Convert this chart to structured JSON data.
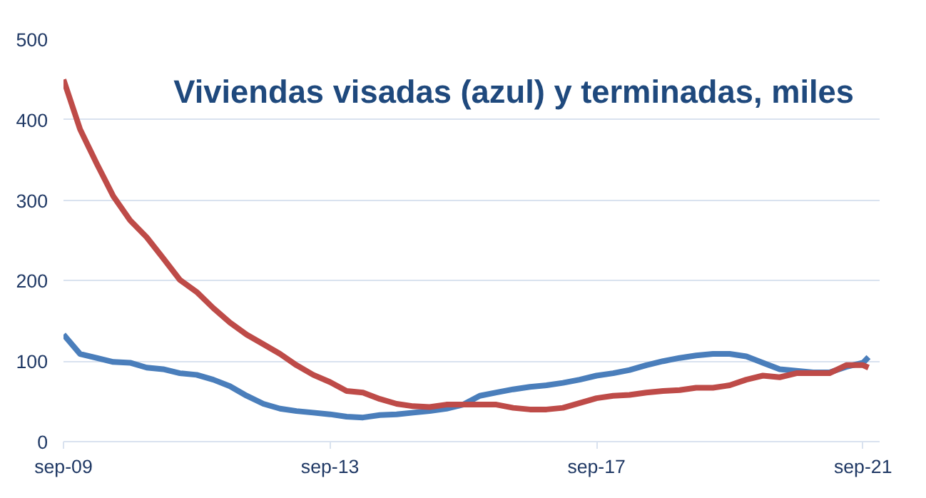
{
  "chart_data": {
    "type": "line",
    "title": "Viviendas visadas (azul) y terminadas, miles",
    "x": [
      "2009-09",
      "2009-12",
      "2010-03",
      "2010-06",
      "2010-09",
      "2010-12",
      "2011-03",
      "2011-06",
      "2011-09",
      "2011-12",
      "2012-03",
      "2012-06",
      "2012-09",
      "2012-12",
      "2013-03",
      "2013-06",
      "2013-09",
      "2013-12",
      "2014-03",
      "2014-06",
      "2014-09",
      "2014-12",
      "2015-03",
      "2015-06",
      "2015-09",
      "2015-12",
      "2016-03",
      "2016-06",
      "2016-09",
      "2016-12",
      "2017-03",
      "2017-06",
      "2017-09",
      "2017-12",
      "2018-03",
      "2018-06",
      "2018-09",
      "2018-12",
      "2019-03",
      "2019-06",
      "2019-09",
      "2019-12",
      "2020-03",
      "2020-06",
      "2020-09",
      "2020-12",
      "2021-03",
      "2021-06",
      "2021-09",
      "2021-10"
    ],
    "series": [
      {
        "color": "#4a7ebb",
        "values": [
          133,
          109,
          104,
          99,
          98,
          92,
          90,
          85,
          83,
          77,
          69,
          57,
          47,
          41,
          38,
          36,
          34,
          31,
          30,
          33,
          34,
          36,
          38,
          41,
          46,
          57,
          61,
          65,
          68,
          70,
          73,
          77,
          82,
          85,
          89,
          95,
          100,
          104,
          107,
          109,
          109,
          106,
          98,
          90,
          88,
          86,
          86,
          93,
          98,
          105
        ]
      },
      {
        "color": "#be4b48",
        "values": [
          450,
          388,
          346,
          305,
          275,
          254,
          228,
          201,
          186,
          166,
          148,
          133,
          121,
          109,
          95,
          83,
          74,
          63,
          61,
          53,
          47,
          44,
          43,
          46,
          46,
          46,
          46,
          42,
          40,
          40,
          42,
          48,
          54,
          57,
          58,
          61,
          63,
          64,
          67,
          67,
          70,
          77,
          82,
          80,
          85,
          85,
          85,
          95,
          95,
          92
        ]
      }
    ],
    "xlim": [
      "2009-09",
      "2021-12"
    ],
    "xticks": [
      {
        "value": "2009-09",
        "label": "sep-09"
      },
      {
        "value": "2013-09",
        "label": "sep-13"
      },
      {
        "value": "2017-09",
        "label": "sep-17"
      },
      {
        "value": "2021-09",
        "label": "sep-21"
      }
    ],
    "ylim": [
      0,
      500
    ],
    "yticks": [
      0,
      100,
      200,
      300,
      400,
      500
    ],
    "grid": "y",
    "line_style": "solid"
  }
}
